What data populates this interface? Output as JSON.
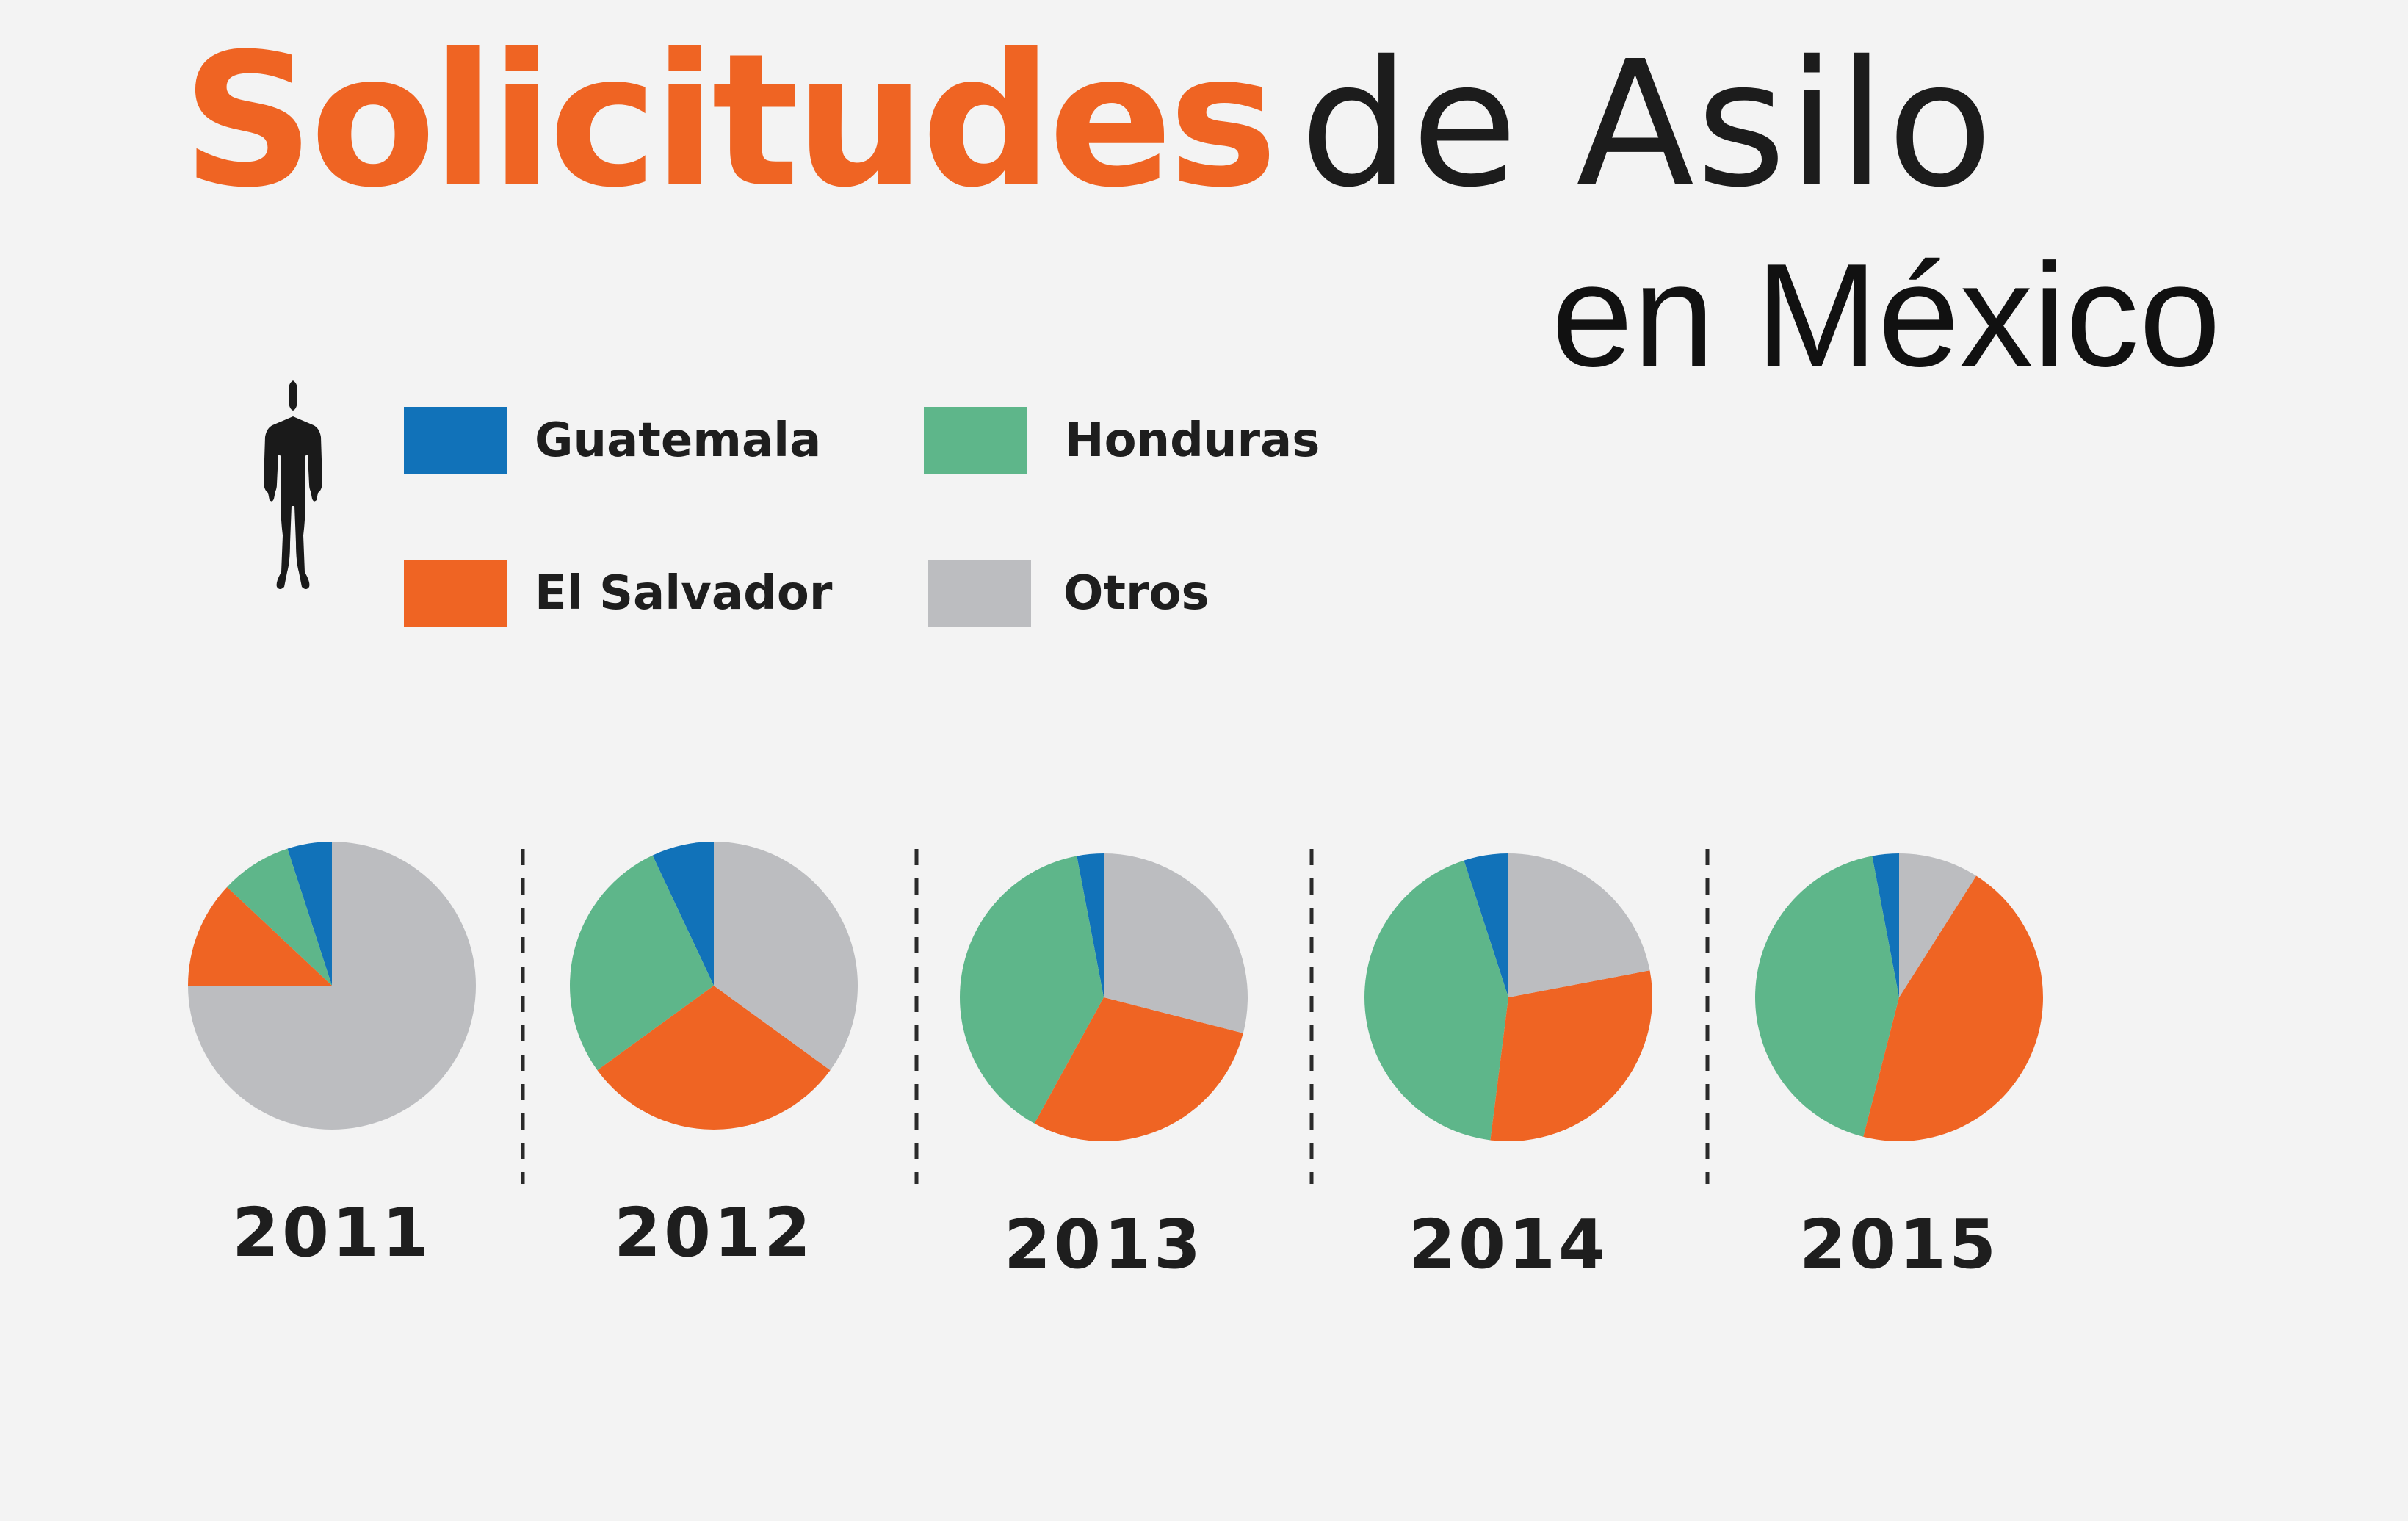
{
  "title": {
    "accent": "Solicitudes",
    "rest": "de Asilo",
    "subtitle": "en México"
  },
  "legend": [
    {
      "label": "Guatemala",
      "color": "#1172b9"
    },
    {
      "label": "Honduras",
      "color": "#5eb68a"
    },
    {
      "label": "El Salvador",
      "color": "#ef6423"
    },
    {
      "label": "Otros",
      "color": "#bcbdc0"
    }
  ],
  "icons": {
    "person": "person-silhouette-icon"
  },
  "chart_data": {
    "type": "pie",
    "categories": [
      "Guatemala",
      "Honduras",
      "El Salvador",
      "Otros"
    ],
    "colors": [
      "#1172b9",
      "#5eb68a",
      "#ef6423",
      "#bcbdc0"
    ],
    "legend_placement": "top",
    "charts": [
      {
        "year": "2011",
        "values": [
          5,
          8,
          12,
          75
        ]
      },
      {
        "year": "2012",
        "values": [
          7,
          28,
          30,
          35
        ]
      },
      {
        "year": "2013",
        "values": [
          3,
          39,
          29,
          29
        ]
      },
      {
        "year": "2014",
        "values": [
          5,
          43,
          30,
          22
        ]
      },
      {
        "year": "2015",
        "values": [
          3,
          43,
          45,
          9
        ]
      }
    ]
  }
}
